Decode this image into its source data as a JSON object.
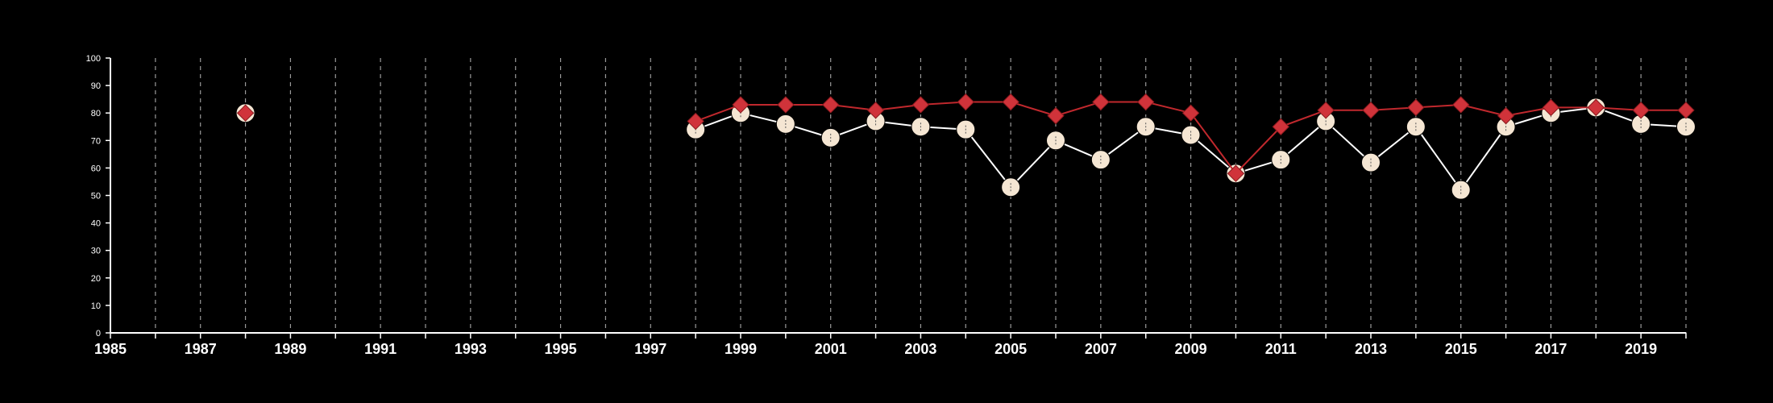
{
  "chart_data": {
    "type": "line",
    "title": "",
    "xlabel": "",
    "ylabel": "",
    "xlim": [
      1985,
      2020
    ],
    "ylim": [
      0,
      100
    ],
    "x_tick_labels": [
      "1985",
      "1987",
      "1989",
      "1991",
      "1993",
      "1995",
      "1997",
      "1999",
      "2001",
      "2003",
      "2005",
      "2007",
      "2009",
      "2011",
      "2013",
      "2015",
      "2017",
      "2019"
    ],
    "y_tick_labels": [
      "0",
      "10",
      "20",
      "30",
      "40",
      "50",
      "60",
      "70",
      "80",
      "90",
      "100"
    ],
    "grid": "vertical dashed lines at each year",
    "legend": "none",
    "background_color": "#000000",
    "series": [
      {
        "marker": "circle",
        "line_color": "#ffffff",
        "marker_fill": "#f5e6d3",
        "points": [
          {
            "x": 1988,
            "y": 80
          },
          {
            "x": 1998,
            "y": 74
          },
          {
            "x": 1999,
            "y": 80
          },
          {
            "x": 2000,
            "y": 76
          },
          {
            "x": 2001,
            "y": 71
          },
          {
            "x": 2002,
            "y": 77
          },
          {
            "x": 2003,
            "y": 75
          },
          {
            "x": 2004,
            "y": 74
          },
          {
            "x": 2005,
            "y": 53
          },
          {
            "x": 2006,
            "y": 70
          },
          {
            "x": 2007,
            "y": 63
          },
          {
            "x": 2008,
            "y": 75
          },
          {
            "x": 2009,
            "y": 72
          },
          {
            "x": 2010,
            "y": 58
          },
          {
            "x": 2011,
            "y": 63
          },
          {
            "x": 2012,
            "y": 77
          },
          {
            "x": 2013,
            "y": 62
          },
          {
            "x": 2014,
            "y": 75
          },
          {
            "x": 2015,
            "y": 52
          },
          {
            "x": 2016,
            "y": 75
          },
          {
            "x": 2017,
            "y": 80
          },
          {
            "x": 2018,
            "y": 82
          },
          {
            "x": 2019,
            "y": 76
          },
          {
            "x": 2020,
            "y": 75
          }
        ]
      },
      {
        "marker": "diamond",
        "line_color": "#c0282d",
        "marker_fill": "#d0333a",
        "points": [
          {
            "x": 1988,
            "y": 80
          },
          {
            "x": 1998,
            "y": 77
          },
          {
            "x": 1999,
            "y": 83
          },
          {
            "x": 2000,
            "y": 83
          },
          {
            "x": 2001,
            "y": 83
          },
          {
            "x": 2002,
            "y": 81
          },
          {
            "x": 2003,
            "y": 83
          },
          {
            "x": 2004,
            "y": 84
          },
          {
            "x": 2005,
            "y": 84
          },
          {
            "x": 2006,
            "y": 79
          },
          {
            "x": 2007,
            "y": 84
          },
          {
            "x": 2008,
            "y": 84
          },
          {
            "x": 2009,
            "y": 80
          },
          {
            "x": 2010,
            "y": 58
          },
          {
            "x": 2011,
            "y": 75
          },
          {
            "x": 2012,
            "y": 81
          },
          {
            "x": 2013,
            "y": 81
          },
          {
            "x": 2014,
            "y": 82
          },
          {
            "x": 2015,
            "y": 83
          },
          {
            "x": 2016,
            "y": 79
          },
          {
            "x": 2017,
            "y": 82
          },
          {
            "x": 2018,
            "y": 82
          },
          {
            "x": 2019,
            "y": 81
          },
          {
            "x": 2020,
            "y": 81
          }
        ]
      }
    ]
  }
}
